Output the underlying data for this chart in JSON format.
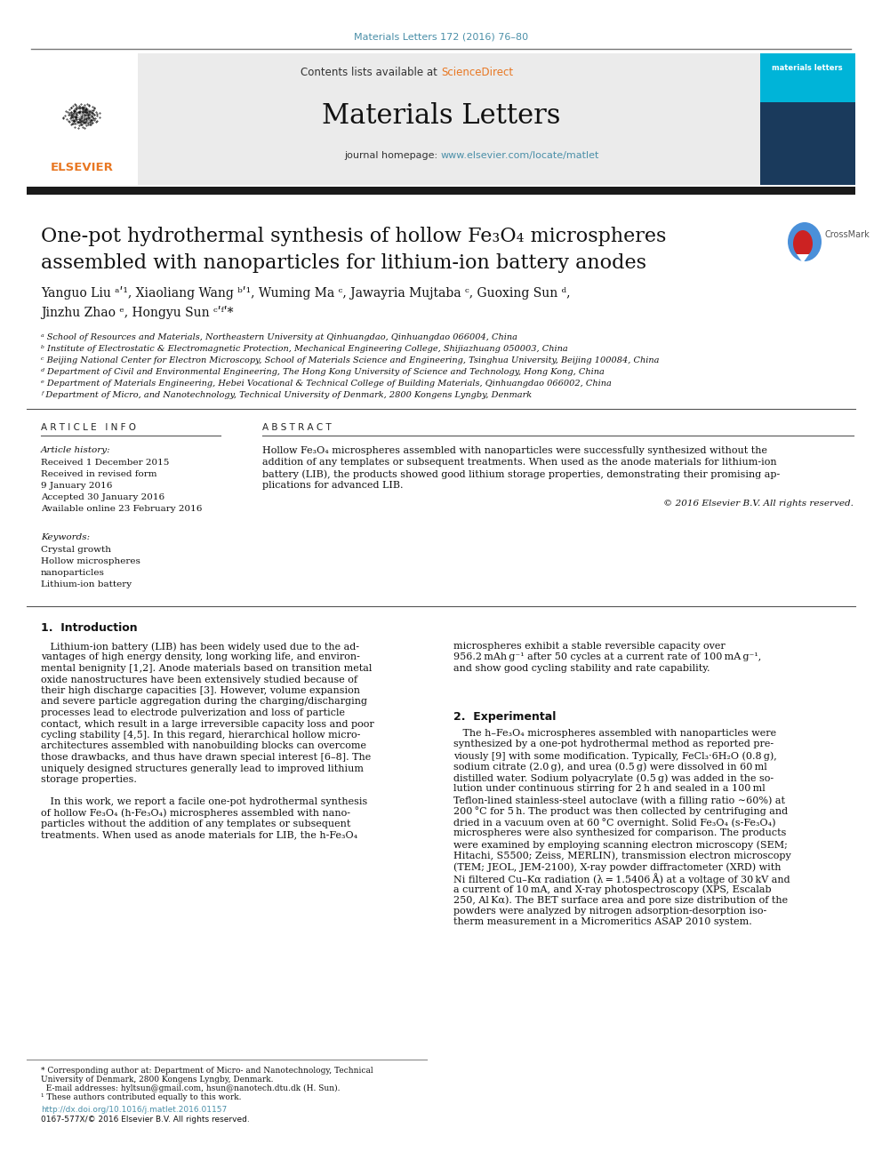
{
  "page_bg": "#ffffff",
  "journal_ref_text": "Materials Letters 172 (2016) 76–80",
  "journal_ref_color": "#4a8fa8",
  "header_bg": "#ebebeb",
  "header_sd_color": "#e87722",
  "header_url_color": "#4a8fa8",
  "elsevier_color": "#e87722",
  "thick_bar_color": "#1a1a1a",
  "article_title_fontsize": 16,
  "authors_fontsize": 10,
  "affiliations_fontsize": 7,
  "body_fontsize": 8,
  "section_fontsize": 9,
  "footer_fontsize": 6.5,
  "affiliations": [
    "ᵃ School of Resources and Materials, Northeastern University at Qinhuangdao, Qinhuangdao 066004, China",
    "ᵇ Institute of Electrostatic & Electromagnetic Protection, Mechanical Engineering College, Shijiazhuang 050003, China",
    "ᶜ Beijing National Center for Electron Microscopy, School of Materials Science and Engineering, Tsinghua University, Beijing 100084, China",
    "ᵈ Department of Civil and Environmental Engineering, The Hong Kong University of Science and Technology, Hong Kong, China",
    "ᵉ Department of Materials Engineering, Hebei Vocational & Technical College of Building Materials, Qinhuangdao 066002, China",
    "ᶠ Department of Micro, and Nanotechnology, Technical University of Denmark, 2800 Kongens Lyngby, Denmark"
  ],
  "intro_left_lines": [
    "   Lithium-ion battery (LIB) has been widely used due to the ad-",
    "vantages of high energy density, long working life, and environ-",
    "mental benignity [1,2]. Anode materials based on transition metal",
    "oxide nanostructures have been extensively studied because of",
    "their high discharge capacities [3]. However, volume expansion",
    "and severe particle aggregation during the charging/discharging",
    "processes lead to electrode pulverization and loss of particle",
    "contact, which result in a large irreversible capacity loss and poor",
    "cycling stability [4,5]. In this regard, hierarchical hollow micro-",
    "architectures assembled with nanobuilding blocks can overcome",
    "those drawbacks, and thus have drawn special interest [6–8]. The",
    "uniquely designed structures generally lead to improved lithium",
    "storage properties.",
    "",
    "   In this work, we report a facile one-pot hydrothermal synthesis",
    "of hollow Fe₃O₄ (h-Fe₃O₄) microspheres assembled with nano-",
    "particles without the addition of any templates or subsequent",
    "treatments. When used as anode materials for LIB, the h-Fe₃O₄"
  ],
  "intro_right_lines": [
    "microspheres exhibit a stable reversible capacity over",
    "956.2 mAh g⁻¹ after 50 cycles at a current rate of 100 mA g⁻¹,",
    "and show good cycling stability and rate capability."
  ],
  "exp_lines": [
    "   The h–Fe₃O₄ microspheres assembled with nanoparticles were",
    "synthesized by a one-pot hydrothermal method as reported pre-",
    "viously [9] with some modification. Typically, FeCl₃·6H₂O (0.8 g),",
    "sodium citrate (2.0 g), and urea (0.5 g) were dissolved in 60 ml",
    "distilled water. Sodium polyacrylate (0.5 g) was added in the so-",
    "lution under continuous stirring for 2 h and sealed in a 100 ml",
    "Teflon-lined stainless-steel autoclave (with a filling ratio ∼60%) at",
    "200 °C for 5 h. The product was then collected by centrifuging and",
    "dried in a vacuum oven at 60 °C overnight. Solid Fe₃O₄ (s-Fe₃O₄)",
    "microspheres were also synthesized for comparison. The products",
    "were examined by employing scanning electron microscopy (SEM;",
    "Hitachi, S5500; Zeiss, MERLIN), transmission electron microscopy",
    "(TEM; JEOL, JEM-2100), X-ray powder diffractometer (XRD) with",
    "Ni filtered Cu–Kα radiation (λ = 1.5406 Å) at a voltage of 30 kV and",
    "a current of 10 mA, and X-ray photospectroscopy (XPS, Escalab",
    "250, Al Kα). The BET surface area and pore size distribution of the",
    "powders were analyzed by nitrogen adsorption-desorption iso-",
    "therm measurement in a Micromeritics ASAP 2010 system."
  ],
  "footnote_lines": [
    "* Corresponding author at: Department of Micro- and Nanotechnology, Technical",
    "University of Denmark, 2800 Kongens Lyngby, Denmark.",
    "  E-mail addresses: hyltsun@gmail.com, hsun@nanotech.dtu.dk (H. Sun).",
    "¹ These authors contributed equally to this work."
  ]
}
